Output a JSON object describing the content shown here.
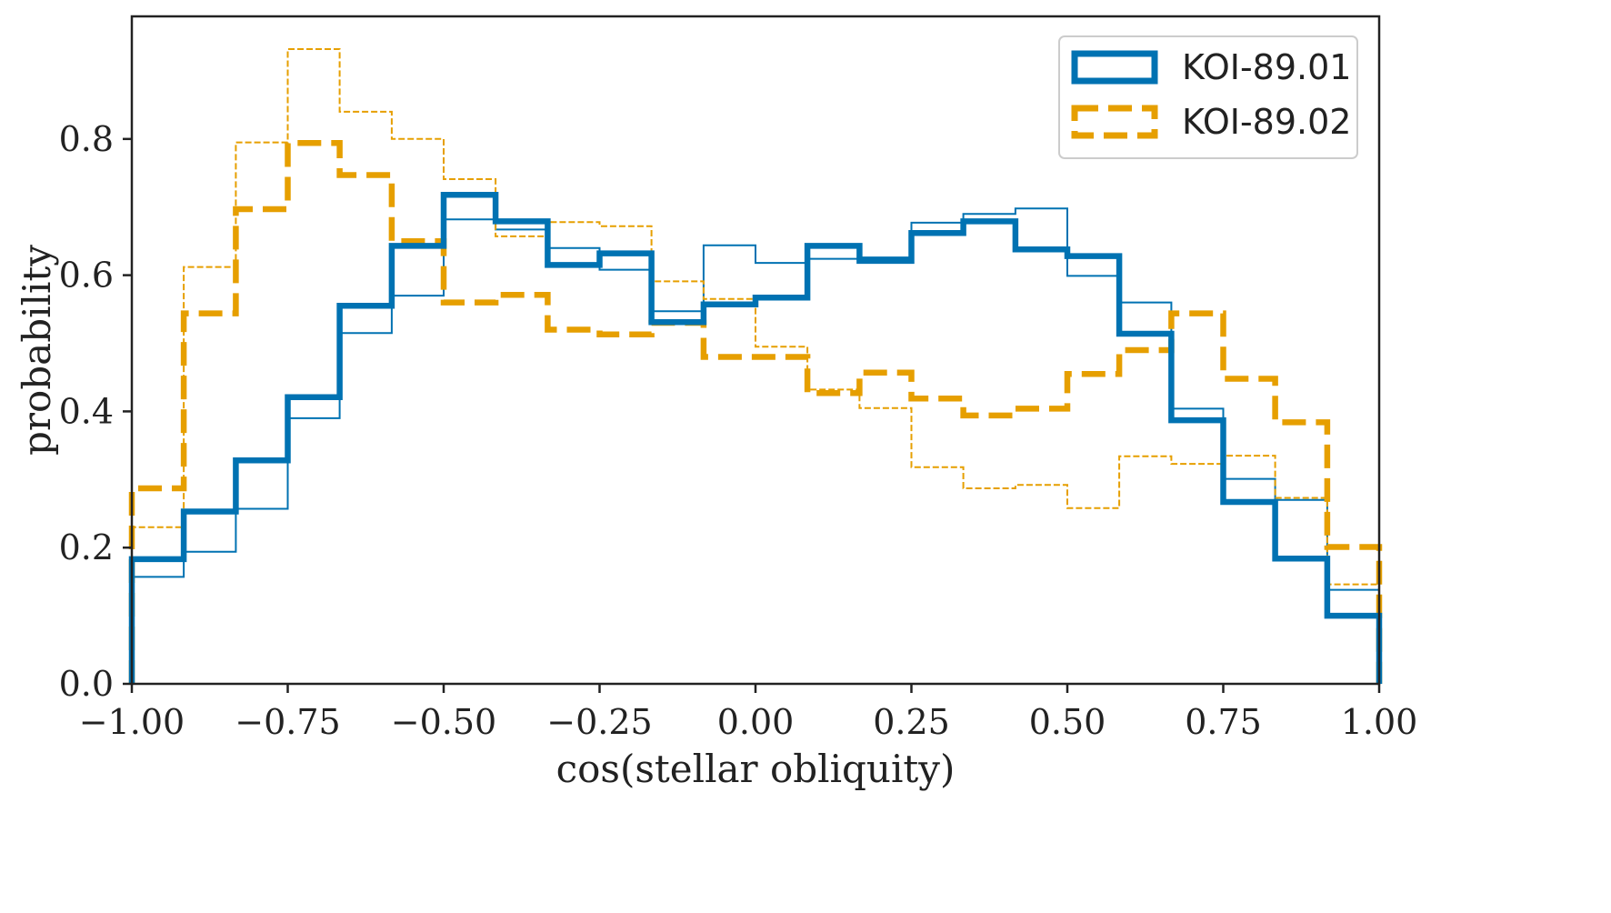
{
  "chart_data": {
    "type": "histogram-step",
    "xlabel": "cos(stellar obliquity)",
    "ylabel": "probability",
    "xlim": [
      -1.0,
      1.0
    ],
    "ylim": [
      0.0,
      0.98
    ],
    "xticks": [
      -1.0,
      -0.75,
      -0.5,
      -0.25,
      0.0,
      0.25,
      0.5,
      0.75,
      1.0
    ],
    "xtick_labels": [
      "−1.00",
      "−0.75",
      "−0.50",
      "−0.25",
      "0.00",
      "0.25",
      "0.50",
      "0.75",
      "1.00"
    ],
    "yticks": [
      0.0,
      0.2,
      0.4,
      0.6,
      0.8
    ],
    "ytick_labels": [
      "0.0",
      "0.2",
      "0.4",
      "0.6",
      "0.8"
    ],
    "legend_position": "top-right",
    "bin_edges": [
      -1.0,
      -0.9167,
      -0.8333,
      -0.75,
      -0.6667,
      -0.5833,
      -0.5,
      -0.4167,
      -0.3333,
      -0.25,
      -0.1667,
      -0.0833,
      0.0,
      0.0833,
      0.1667,
      0.25,
      0.3333,
      0.4167,
      0.5,
      0.5833,
      0.6667,
      0.75,
      0.8333,
      0.9167,
      1.0
    ],
    "series": [
      {
        "name": "KOI-89.01",
        "color": "#0072B2",
        "style": "solid",
        "weight": "thick",
        "in_legend": true,
        "values": [
          0.183,
          0.253,
          0.328,
          0.421,
          0.555,
          0.643,
          0.718,
          0.679,
          0.615,
          0.632,
          0.531,
          0.557,
          0.567,
          0.643,
          0.621,
          0.662,
          0.679,
          0.638,
          0.628,
          0.514,
          0.387,
          0.267,
          0.184,
          0.1
        ]
      },
      {
        "name": "KOI-89.02",
        "color": "#E69F00",
        "style": "dashed",
        "weight": "thick",
        "in_legend": true,
        "values": [
          0.287,
          0.544,
          0.697,
          0.794,
          0.747,
          0.65,
          0.56,
          0.571,
          0.52,
          0.513,
          0.53,
          0.48,
          0.48,
          0.427,
          0.457,
          0.419,
          0.394,
          0.404,
          0.455,
          0.49,
          0.544,
          0.448,
          0.384,
          0.201
        ]
      },
      {
        "name": "KOI-89.01 (thin)",
        "color": "#0072B2",
        "style": "solid",
        "weight": "thin",
        "in_legend": false,
        "values": [
          0.157,
          0.194,
          0.257,
          0.39,
          0.515,
          0.57,
          0.682,
          0.667,
          0.64,
          0.608,
          0.547,
          0.644,
          0.618,
          0.624,
          0.626,
          0.677,
          0.69,
          0.698,
          0.599,
          0.56,
          0.404,
          0.301,
          0.27,
          0.138
        ]
      },
      {
        "name": "KOI-89.02 (thin)",
        "color": "#E69F00",
        "style": "dashed",
        "weight": "thin",
        "in_legend": false,
        "values": [
          0.23,
          0.612,
          0.795,
          0.932,
          0.84,
          0.8,
          0.741,
          0.657,
          0.678,
          0.672,
          0.591,
          0.565,
          0.495,
          0.432,
          0.405,
          0.318,
          0.287,
          0.292,
          0.258,
          0.334,
          0.323,
          0.335,
          0.273,
          0.146
        ]
      }
    ]
  }
}
